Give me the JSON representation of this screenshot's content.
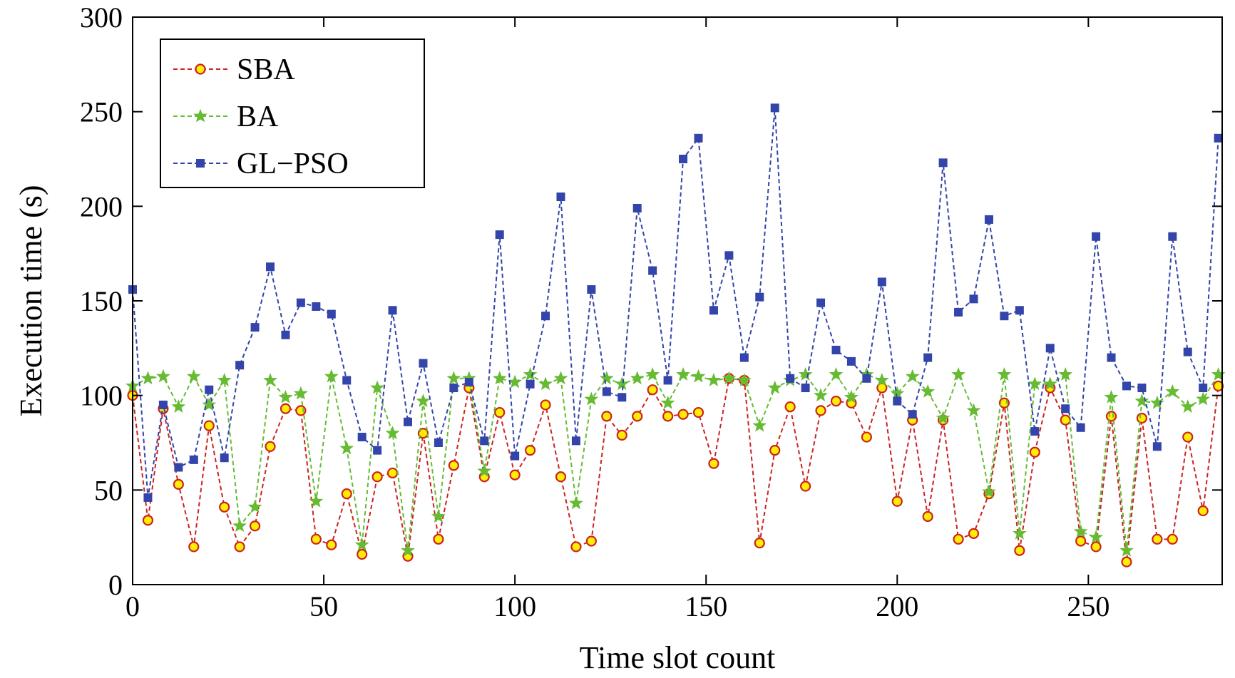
{
  "chart_data": {
    "type": "line",
    "xlabel": "Time slot count",
    "ylabel": "Execution time (s)",
    "xlim": [
      0,
      285
    ],
    "ylim": [
      0,
      300
    ],
    "xticks": [
      0,
      50,
      100,
      150,
      200,
      250
    ],
    "yticks": [
      0,
      50,
      100,
      150,
      200,
      250,
      300
    ],
    "grid": false,
    "legend": "top-left",
    "x": [
      0,
      4,
      8,
      12,
      16,
      20,
      24,
      28,
      32,
      36,
      40,
      44,
      48,
      52,
      56,
      60,
      64,
      68,
      72,
      76,
      80,
      84,
      88,
      92,
      96,
      100,
      104,
      108,
      112,
      116,
      120,
      124,
      128,
      132,
      136,
      140,
      144,
      148,
      152,
      156,
      160,
      164,
      168,
      172,
      176,
      180,
      184,
      188,
      192,
      196,
      200,
      204,
      208,
      212,
      216,
      220,
      224,
      228,
      232,
      236,
      240,
      244,
      248,
      252,
      256,
      260,
      264,
      268,
      272,
      276,
      280,
      284
    ],
    "series": [
      {
        "name": "SBA",
        "color": "#cc2222",
        "marker": "circle",
        "marker_fill": "#ffee00",
        "values": [
          100,
          34,
          93,
          53,
          20,
          84,
          41,
          20,
          31,
          73,
          93,
          92,
          24,
          21,
          48,
          16,
          57,
          59,
          15,
          80,
          24,
          63,
          104,
          57,
          91,
          58,
          71,
          95,
          57,
          20,
          23,
          89,
          79,
          89,
          103,
          89,
          90,
          91,
          64,
          109,
          108,
          22,
          71,
          94,
          52,
          92,
          97,
          96,
          78,
          104,
          44,
          87,
          36,
          87,
          24,
          27,
          48,
          96,
          18,
          70,
          104,
          87,
          23,
          20,
          89,
          12,
          88,
          24,
          24,
          78,
          39,
          105
        ]
      },
      {
        "name": "BA",
        "color": "#66bb33",
        "marker": "star",
        "values": [
          105,
          109,
          110,
          94,
          110,
          95,
          108,
          31,
          41,
          108,
          99,
          101,
          44,
          110,
          72,
          21,
          104,
          80,
          18,
          97,
          36,
          109,
          109,
          60,
          109,
          107,
          111,
          106,
          109,
          43,
          98,
          109,
          106,
          109,
          111,
          96,
          111,
          110,
          108,
          109,
          108,
          84,
          104,
          108,
          111,
          100,
          111,
          99,
          111,
          108,
          101,
          110,
          102,
          88,
          111,
          92,
          49,
          111,
          27,
          106,
          106,
          111,
          28,
          25,
          99,
          18,
          97,
          96,
          102,
          94,
          98,
          111
        ]
      },
      {
        "name": "GL−PSO",
        "color": "#3344aa",
        "marker": "square",
        "values": [
          156,
          46,
          95,
          62,
          66,
          103,
          67,
          116,
          136,
          168,
          132,
          149,
          147,
          143,
          108,
          78,
          71,
          145,
          86,
          117,
          75,
          104,
          107,
          76,
          185,
          68,
          106,
          142,
          205,
          76,
          156,
          102,
          99,
          199,
          166,
          108,
          225,
          236,
          145,
          174,
          120,
          152,
          252,
          109,
          104,
          149,
          124,
          118,
          109,
          160,
          97,
          90,
          120,
          223,
          144,
          151,
          193,
          142,
          145,
          81,
          125,
          93,
          83,
          184,
          120,
          105,
          104,
          73,
          184,
          123,
          104,
          236
        ]
      }
    ]
  }
}
